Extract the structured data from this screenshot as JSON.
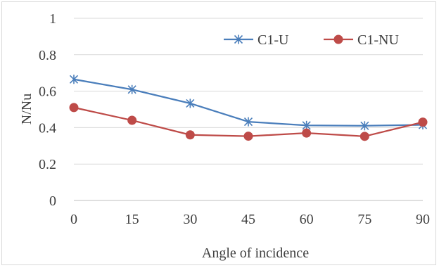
{
  "chart_data": {
    "type": "line",
    "title": "",
    "xlabel": "Angle of incidence",
    "ylabel": "N/Nu",
    "categories": [
      "0",
      "15",
      "30",
      "45",
      "60",
      "75",
      "90"
    ],
    "ylim": [
      0,
      1
    ],
    "yticks": [
      "0",
      "0.2",
      "0.4",
      "0.6",
      "0.8",
      "1"
    ],
    "grid": "horizontal",
    "legend_position": "top-right",
    "series": [
      {
        "name": "C1-U",
        "values": [
          0.665,
          0.609,
          0.533,
          0.432,
          0.412,
          0.41,
          0.415
        ],
        "color": "#4a7ebb",
        "marker": "star"
      },
      {
        "name": "C1-NU",
        "values": [
          0.51,
          0.44,
          0.36,
          0.353,
          0.37,
          0.352,
          0.43
        ],
        "color": "#be4b48",
        "marker": "circle"
      }
    ]
  }
}
